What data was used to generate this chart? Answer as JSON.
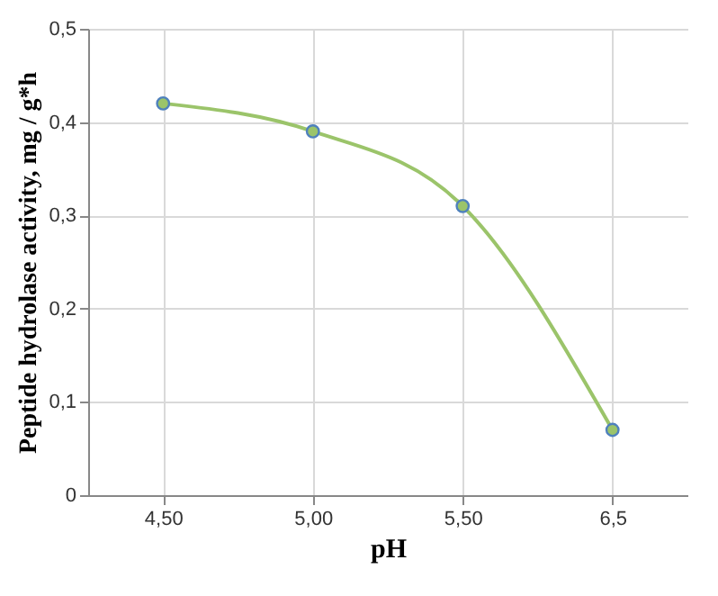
{
  "chart_data": {
    "type": "line",
    "xlabel": "pH",
    "ylabel": "Peptide hydrolase activity, mg / g*h",
    "categories": [
      "4,50",
      "5,00",
      "5,50",
      "6,5"
    ],
    "series": [
      {
        "color": "#9bc46a",
        "values": [
          0.42,
          0.39,
          0.31,
          0.07
        ]
      }
    ],
    "ylim": [
      0,
      0.5
    ],
    "yticks": [
      0,
      {
        "value": 0.1,
        "label": "0,1"
      },
      {
        "value": 0.2,
        "label": "0,2"
      },
      {
        "value": 0.3,
        "label": "0,3"
      },
      {
        "value": 0.4,
        "label": "0,4"
      },
      {
        "value": 0.5,
        "label": "0,5"
      }
    ],
    "grid": true,
    "marker": "circle",
    "line_style": "solid"
  }
}
